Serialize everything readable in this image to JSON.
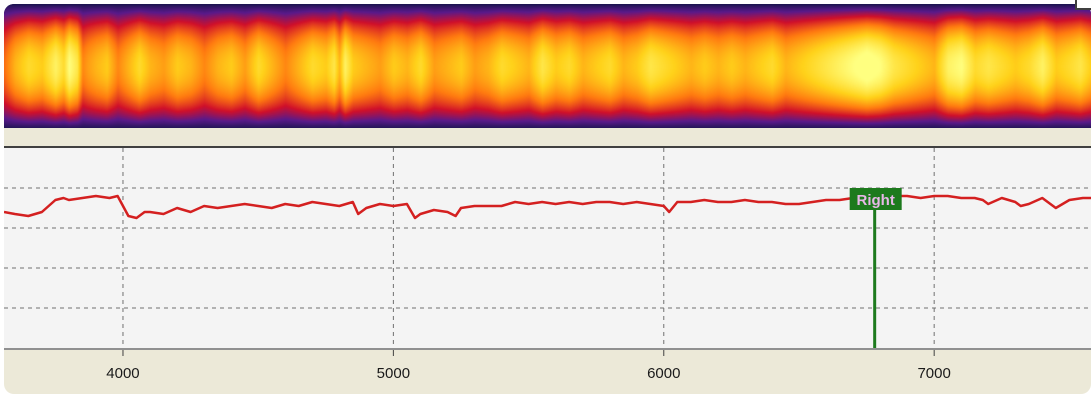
{
  "chart_data": [
    {
      "type": "heatmap",
      "title": "",
      "xlim": [
        3560,
        7580
      ],
      "colormap": [
        "#1c1450",
        "#5a1a8a",
        "#d0102a",
        "#ff7a10",
        "#ffd21a",
        "#ffff80"
      ],
      "x": [
        3560,
        3600,
        3650,
        3700,
        3750,
        3780,
        3800,
        3830,
        3850,
        3870,
        3900,
        3940,
        3980,
        4020,
        4060,
        4100,
        4150,
        4200,
        4250,
        4300,
        4350,
        4400,
        4450,
        4500,
        4550,
        4600,
        4650,
        4700,
        4750,
        4780,
        4800,
        4820,
        4850,
        4900,
        4950,
        5000,
        5050,
        5100,
        5150,
        5200,
        5250,
        5300,
        5350,
        5400,
        5450,
        5500,
        5550,
        5600,
        5650,
        5700,
        5750,
        5800,
        5850,
        5900,
        5950,
        6000,
        6050,
        6100,
        6150,
        6200,
        6250,
        6300,
        6350,
        6400,
        6450,
        6500,
        6550,
        6600,
        6650,
        6700,
        6750,
        6800,
        6850,
        6900,
        6950,
        7000,
        7050,
        7100,
        7150,
        7200,
        7250,
        7300,
        7350,
        7400,
        7450,
        7500,
        7540,
        7580
      ],
      "intensity": [
        0.55,
        0.7,
        0.8,
        0.75,
        0.9,
        0.8,
        0.95,
        0.85,
        0.6,
        0.65,
        0.7,
        0.75,
        0.6,
        0.7,
        0.8,
        0.7,
        0.65,
        0.75,
        0.7,
        0.6,
        0.7,
        0.75,
        0.65,
        0.8,
        0.7,
        0.6,
        0.7,
        0.8,
        0.75,
        0.85,
        0.7,
        0.9,
        0.75,
        0.7,
        0.65,
        0.75,
        0.7,
        0.8,
        0.65,
        0.7,
        0.75,
        0.65,
        0.7,
        0.8,
        0.75,
        0.7,
        0.85,
        0.75,
        0.8,
        0.7,
        0.75,
        0.8,
        0.7,
        0.75,
        0.85,
        0.8,
        0.75,
        0.7,
        0.75,
        0.7,
        0.75,
        0.7,
        0.75,
        0.8,
        0.7,
        0.75,
        0.8,
        0.85,
        0.9,
        0.95,
        1.0,
        0.95,
        0.85,
        0.8,
        0.75,
        0.7,
        0.9,
        0.95,
        0.8,
        0.85,
        0.8,
        0.75,
        0.8,
        0.9,
        0.75,
        0.8,
        0.85,
        0.75
      ]
    },
    {
      "type": "line",
      "title": "",
      "xlabel": "",
      "ylabel": "",
      "xlim": [
        3560,
        7580
      ],
      "ylim": [
        0,
        1
      ],
      "xticks": [
        4000,
        5000,
        6000,
        7000
      ],
      "xtick_labels": [
        "4000",
        "5000",
        "6000",
        "7000"
      ],
      "yticks": [
        0.2,
        0.4,
        0.6,
        0.8
      ],
      "grid": "dashed",
      "series": [
        {
          "color": "#d42020",
          "x": [
            3560,
            3600,
            3650,
            3700,
            3750,
            3780,
            3800,
            3850,
            3900,
            3950,
            3980,
            4000,
            4020,
            4050,
            4080,
            4100,
            4150,
            4200,
            4250,
            4300,
            4350,
            4400,
            4450,
            4500,
            4550,
            4600,
            4650,
            4700,
            4750,
            4800,
            4850,
            4870,
            4900,
            4950,
            5000,
            5050,
            5080,
            5100,
            5150,
            5200,
            5230,
            5250,
            5300,
            5350,
            5400,
            5450,
            5500,
            5550,
            5600,
            5650,
            5700,
            5750,
            5800,
            5850,
            5900,
            5950,
            6000,
            6020,
            6050,
            6100,
            6150,
            6200,
            6250,
            6300,
            6350,
            6400,
            6450,
            6500,
            6550,
            6600,
            6650,
            6700,
            6750,
            6800,
            6850,
            6900,
            6950,
            7000,
            7050,
            7100,
            7150,
            7180,
            7200,
            7250,
            7300,
            7320,
            7350,
            7400,
            7450,
            7500,
            7550,
            7580
          ],
          "y": [
            0.68,
            0.67,
            0.66,
            0.68,
            0.74,
            0.75,
            0.74,
            0.75,
            0.76,
            0.75,
            0.76,
            0.71,
            0.66,
            0.65,
            0.68,
            0.68,
            0.67,
            0.7,
            0.68,
            0.71,
            0.7,
            0.71,
            0.72,
            0.71,
            0.7,
            0.72,
            0.71,
            0.73,
            0.72,
            0.71,
            0.73,
            0.67,
            0.7,
            0.72,
            0.71,
            0.72,
            0.65,
            0.67,
            0.69,
            0.68,
            0.66,
            0.7,
            0.71,
            0.71,
            0.71,
            0.73,
            0.72,
            0.73,
            0.72,
            0.73,
            0.72,
            0.73,
            0.73,
            0.72,
            0.73,
            0.72,
            0.71,
            0.68,
            0.73,
            0.73,
            0.74,
            0.73,
            0.73,
            0.74,
            0.73,
            0.73,
            0.72,
            0.72,
            0.73,
            0.74,
            0.74,
            0.75,
            0.75,
            0.76,
            0.76,
            0.76,
            0.75,
            0.76,
            0.76,
            0.75,
            0.75,
            0.74,
            0.72,
            0.75,
            0.73,
            0.71,
            0.72,
            0.75,
            0.7,
            0.74,
            0.75,
            0.75
          ]
        }
      ],
      "annotations": [
        {
          "type": "vertical-marker",
          "x": 6780,
          "label": "Right",
          "label_color": "#e8b8e8",
          "line_color": "#1d7a1d"
        }
      ]
    }
  ]
}
